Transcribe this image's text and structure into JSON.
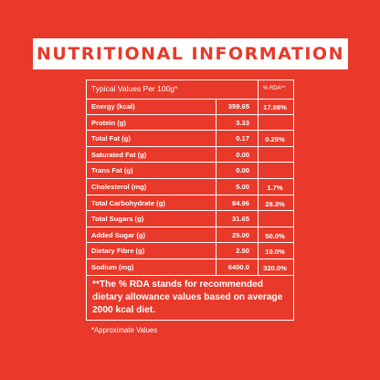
{
  "title": "NUTRITIONAL INFORMATION",
  "table": {
    "header_label": "Typical Values Per 100g*",
    "header_rda": "% RDA**",
    "rows": [
      {
        "name": "Energy (kcal)",
        "value": "359.65",
        "rda": "17.98%"
      },
      {
        "name": "Protein (g)",
        "value": "3.33",
        "rda": ""
      },
      {
        "name": "Total Fat (g)",
        "value": "0.17",
        "rda": "0.25%"
      },
      {
        "name": "Saturated Fat (g)",
        "value": "0.00",
        "rda": ""
      },
      {
        "name": "Trans Fat (g)",
        "value": "0.00",
        "rda": ""
      },
      {
        "name": "Cholesterol (mg)",
        "value": "5.00",
        "rda": "1.7%"
      },
      {
        "name": "Total Carbohydrate (g)",
        "value": "84.96",
        "rda": "28.3%"
      },
      {
        "name": "Total Sugars (g)",
        "value": "31.65",
        "rda": ""
      },
      {
        "name": "Added  Sugar (g)",
        "value": "25.00",
        "rda": "50.0%"
      },
      {
        "name": "Dietary Fibre (g)",
        "value": "2.50",
        "rda": "10.0%"
      },
      {
        "name": "Sodium (mg)",
        "value": "6400.0",
        "rda": "320.0%"
      }
    ],
    "note": "**The % RDA stands for recommended dietary allowance values based on average 2000 kcal diet."
  },
  "footnote": "*Approximate Values"
}
